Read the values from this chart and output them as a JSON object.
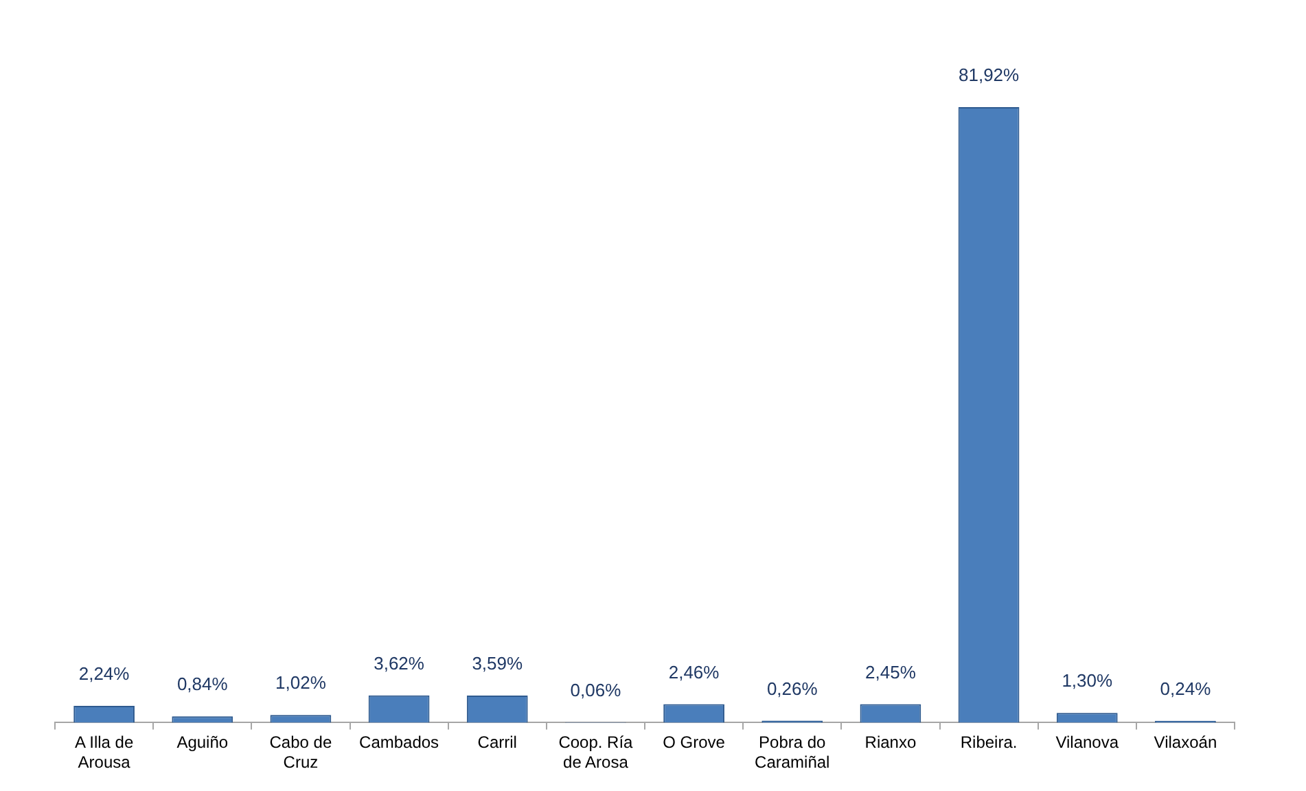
{
  "chart_data": {
    "type": "bar",
    "categories": [
      "A Illa de Arousa",
      "Aguiño",
      "Cabo de Cruz",
      "Cambados",
      "Carril",
      "Coop. Ría de Arosa",
      "O Grove",
      "Pobra do Caramiñal",
      "Rianxo",
      "Ribeira.",
      "Vilanova",
      "Vilaxoán"
    ],
    "values": [
      2.24,
      0.84,
      1.02,
      3.62,
      3.59,
      0.06,
      2.46,
      0.26,
      2.45,
      81.92,
      1.3,
      0.24
    ],
    "value_labels": [
      "2,24%",
      "0,84%",
      "1,02%",
      "3,62%",
      "3,59%",
      "0,06%",
      "2,46%",
      "0,26%",
      "2,45%",
      "81,92%",
      "1,30%",
      "0,24%"
    ],
    "color": "#4a7ebb",
    "grid": false,
    "legend": false
  }
}
